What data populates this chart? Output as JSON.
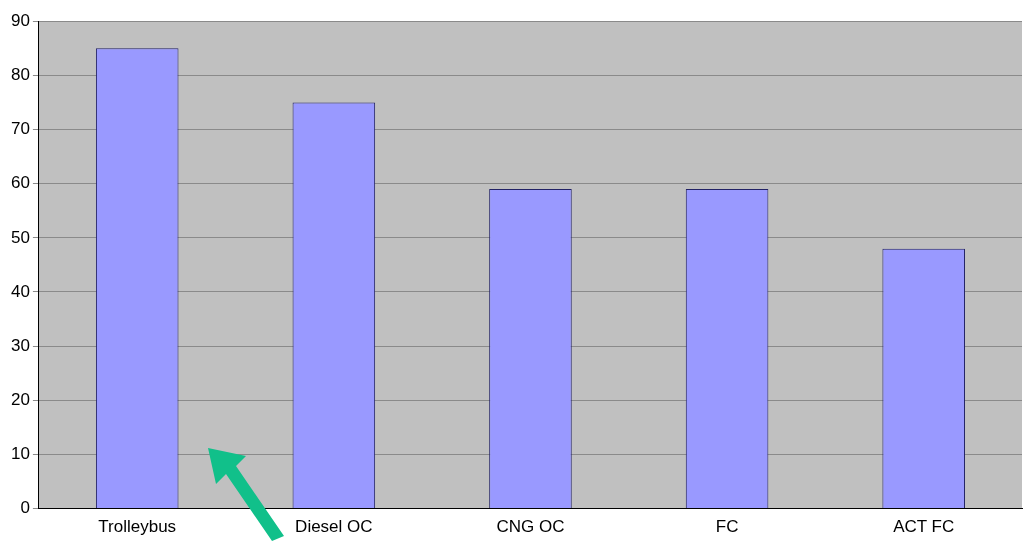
{
  "chart_data": {
    "type": "bar",
    "categories": [
      "Trolleybus",
      "Diesel OC",
      "CNG OC",
      "FC",
      "ACT FC"
    ],
    "values": [
      85,
      75,
      59,
      59,
      48
    ],
    "color": "#9999ff",
    "ylim": [
      0,
      90
    ],
    "yticks": [
      0,
      10,
      20,
      30,
      40,
      50,
      60,
      70,
      80,
      90
    ],
    "grid": "y",
    "legend": false
  }
}
